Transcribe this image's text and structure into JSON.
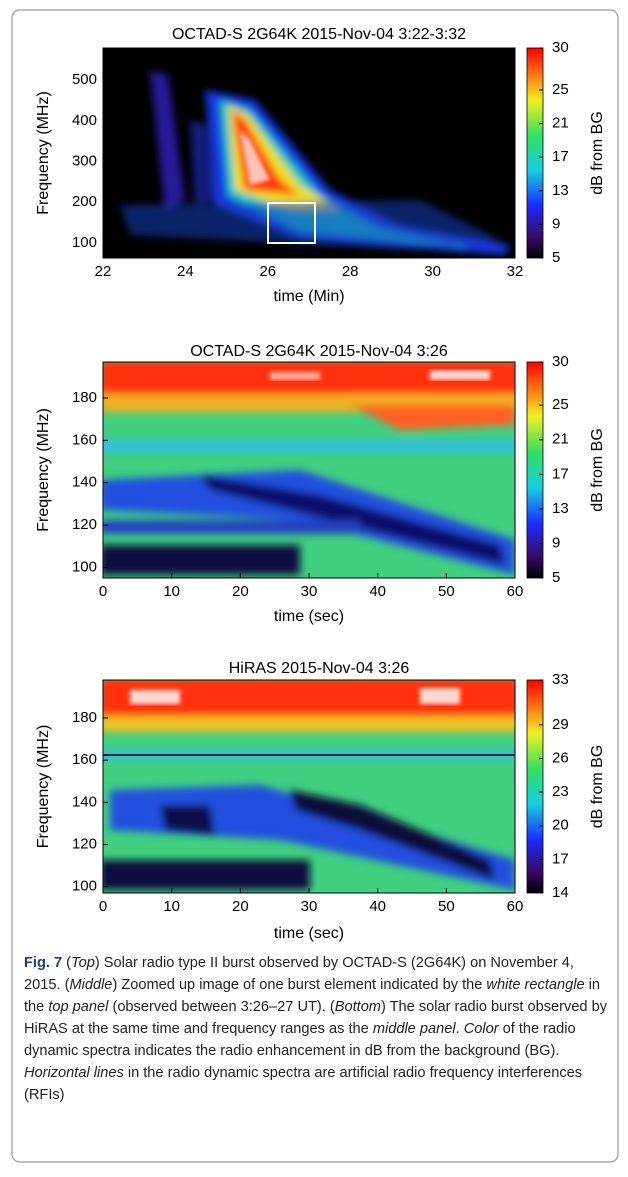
{
  "figure": {
    "panels": [
      {
        "title": "OCTAD-S 2G64K 2015-Nov-04 3:22-3:32",
        "xlabel": "time (Min)",
        "ylabel": "Frequency (MHz)",
        "xlim": [
          22,
          32
        ],
        "xticks": [
          22,
          24,
          26,
          28,
          30,
          32
        ],
        "ylim": [
          63,
          579
        ],
        "yticks": [
          100,
          200,
          300,
          400,
          500
        ],
        "colorbar": {
          "label": "dB from BG",
          "lim": [
            5,
            30
          ],
          "ticks": [
            5,
            9,
            13,
            17,
            21,
            25,
            30
          ]
        }
      },
      {
        "title": "OCTAD-S 2G64K 2015-Nov-04 3:26",
        "xlabel": "time (sec)",
        "ylabel": "Frequency (MHz)",
        "xlim": [
          0,
          60
        ],
        "xticks": [
          0,
          10,
          20,
          30,
          40,
          50,
          60
        ],
        "ylim": [
          95,
          197
        ],
        "yticks": [
          100,
          120,
          140,
          160,
          180
        ],
        "colorbar": {
          "label": "dB from BG",
          "lim": [
            5,
            30
          ],
          "ticks": [
            5,
            9,
            13,
            17,
            21,
            25,
            30
          ]
        }
      },
      {
        "title": "HiRAS 2015-Nov-04 3:26",
        "xlabel": "time (sec)",
        "ylabel": "Frequency (MHz)",
        "xlim": [
          0,
          60
        ],
        "xticks": [
          0,
          10,
          20,
          30,
          40,
          50,
          60
        ],
        "ylim": [
          97,
          198
        ],
        "yticks": [
          100,
          120,
          140,
          160,
          180
        ],
        "colorbar": {
          "label": "dB from BG",
          "lim": [
            14,
            33
          ],
          "ticks": [
            14,
            17,
            20,
            23,
            26,
            29,
            33
          ]
        }
      }
    ],
    "caption": [
      "Fig. 7",
      " (",
      "Top",
      ") Solar radio type II burst observed by OCTAD-S (2G64K) on November 4, 2015. (",
      "Middle",
      ") Zoomed up image of one burst element indicated by the ",
      "white rectangle",
      " in the ",
      "top panel",
      " (observed between 3:26–27 UT). (",
      "Bottom",
      ") The solar radio burst observed by HiRAS at the same time and frequency ranges as the ",
      "middle panel",
      ". ",
      "Color",
      " of the radio dynamic spectra indicates the radio enhancement in dB from the background (BG). ",
      "Horizontal lines",
      " in the radio dynamic spectra are artificial radio frequency interferences (RFIs)"
    ]
  }
}
